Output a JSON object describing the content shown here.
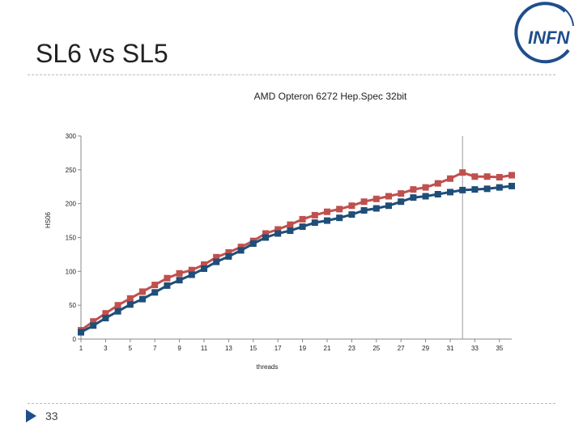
{
  "slide": {
    "title": "SL6 vs SL5",
    "page_number": "33",
    "logo_text": "INFN",
    "accent_color": "#1f4e8c"
  },
  "chart_data": {
    "type": "line",
    "title": "AMD Opteron 6272 Hep.Spec 32bit",
    "xlabel": "threads",
    "ylabel": "HS06",
    "ylim": [
      0,
      300
    ],
    "yticks": [
      0,
      50,
      100,
      150,
      200,
      250,
      300
    ],
    "xticks": [
      1,
      3,
      5,
      7,
      9,
      11,
      13,
      15,
      17,
      19,
      21,
      23,
      25,
      27,
      29,
      31,
      33,
      35
    ],
    "x": [
      1,
      2,
      3,
      4,
      5,
      6,
      7,
      8,
      9,
      10,
      11,
      12,
      13,
      14,
      15,
      16,
      17,
      18,
      19,
      20,
      21,
      22,
      23,
      24,
      25,
      26,
      27,
      28,
      29,
      30,
      31,
      32,
      33,
      34,
      35,
      36
    ],
    "reference_line_x": 32,
    "series": [
      {
        "name": "SL6",
        "color": "#c0504d",
        "values": [
          13,
          26,
          38,
          50,
          60,
          70,
          80,
          90,
          97,
          102,
          110,
          121,
          128,
          136,
          145,
          156,
          162,
          169,
          177,
          183,
          188,
          192,
          197,
          203,
          207,
          211,
          215,
          221,
          224,
          230,
          237,
          246,
          240,
          240,
          239,
          242
        ]
      },
      {
        "name": "SL5",
        "color": "#1f4e79",
        "values": [
          10,
          20,
          31,
          41,
          51,
          59,
          69,
          79,
          87,
          95,
          104,
          114,
          122,
          131,
          141,
          150,
          156,
          160,
          166,
          172,
          175,
          179,
          184,
          190,
          193,
          197,
          203,
          209,
          211,
          214,
          217,
          220,
          221,
          222,
          224,
          226
        ]
      }
    ]
  }
}
